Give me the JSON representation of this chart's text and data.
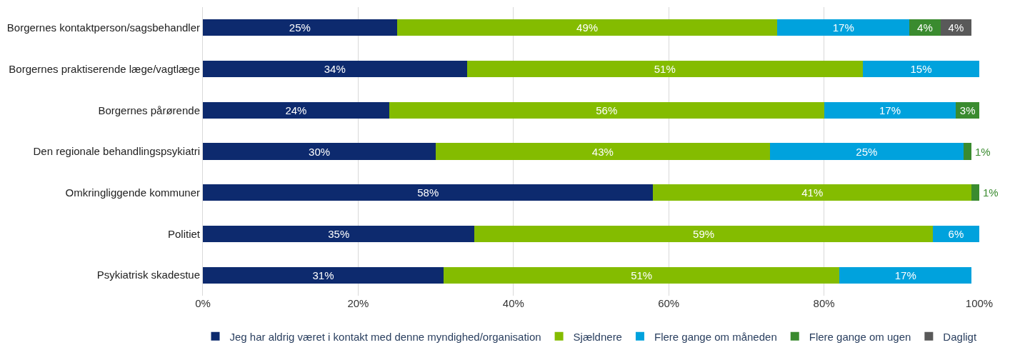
{
  "chart_data": {
    "type": "bar",
    "orientation": "horizontal",
    "stacked": true,
    "categories": [
      "Borgernes kontaktperson/sagsbehandler",
      "Borgernes praktiserende læge/vagtlæge",
      "Borgernes pårørende",
      "Den regionale behandlingspsykiatri",
      "Omkringliggende kommuner",
      "Politiet",
      "Psykiatrisk skadestue"
    ],
    "series": [
      {
        "name": "Jeg har aldrig været i kontakt med denne myndighed/organisation",
        "color": "#0d2a6e",
        "values": [
          25,
          34,
          24,
          30,
          58,
          35,
          31
        ],
        "value_labels": [
          "25%",
          "34%",
          "24%",
          "30%",
          "58%",
          "35%",
          "31%"
        ]
      },
      {
        "name": "Sjældnere",
        "color": "#84bc00",
        "values": [
          49,
          51,
          56,
          43,
          41,
          59,
          51
        ],
        "value_labels": [
          "49%",
          "51%",
          "56%",
          "43%",
          "41%",
          "59%",
          "51%"
        ]
      },
      {
        "name": "Flere gange om måneden",
        "color": "#00a2dd",
        "values": [
          17,
          15,
          17,
          25,
          null,
          6,
          17
        ],
        "value_labels": [
          "17%",
          "15%",
          "17%",
          "25%",
          null,
          "6%",
          "17%"
        ]
      },
      {
        "name": "Flere gange om ugen",
        "color": "#3a8b2f",
        "values": [
          4,
          null,
          3,
          1,
          1,
          null,
          null
        ],
        "value_labels": [
          "4%",
          null,
          "3%",
          "1%",
          "1%",
          null,
          null
        ]
      },
      {
        "name": "Dagligt",
        "color": "#595959",
        "values": [
          4,
          null,
          null,
          null,
          null,
          null,
          null
        ],
        "value_labels": [
          "4%",
          null,
          null,
          null,
          null,
          null,
          null
        ]
      }
    ],
    "xlim": [
      0,
      100
    ],
    "xticks": [
      {
        "value": 0,
        "label": "0%"
      },
      {
        "value": 20,
        "label": "20%"
      },
      {
        "value": 40,
        "label": "40%"
      },
      {
        "value": 60,
        "label": "60%"
      },
      {
        "value": 80,
        "label": "80%"
      },
      {
        "value": 100,
        "label": "100%"
      }
    ],
    "grid": "x",
    "legend": "bottom"
  }
}
